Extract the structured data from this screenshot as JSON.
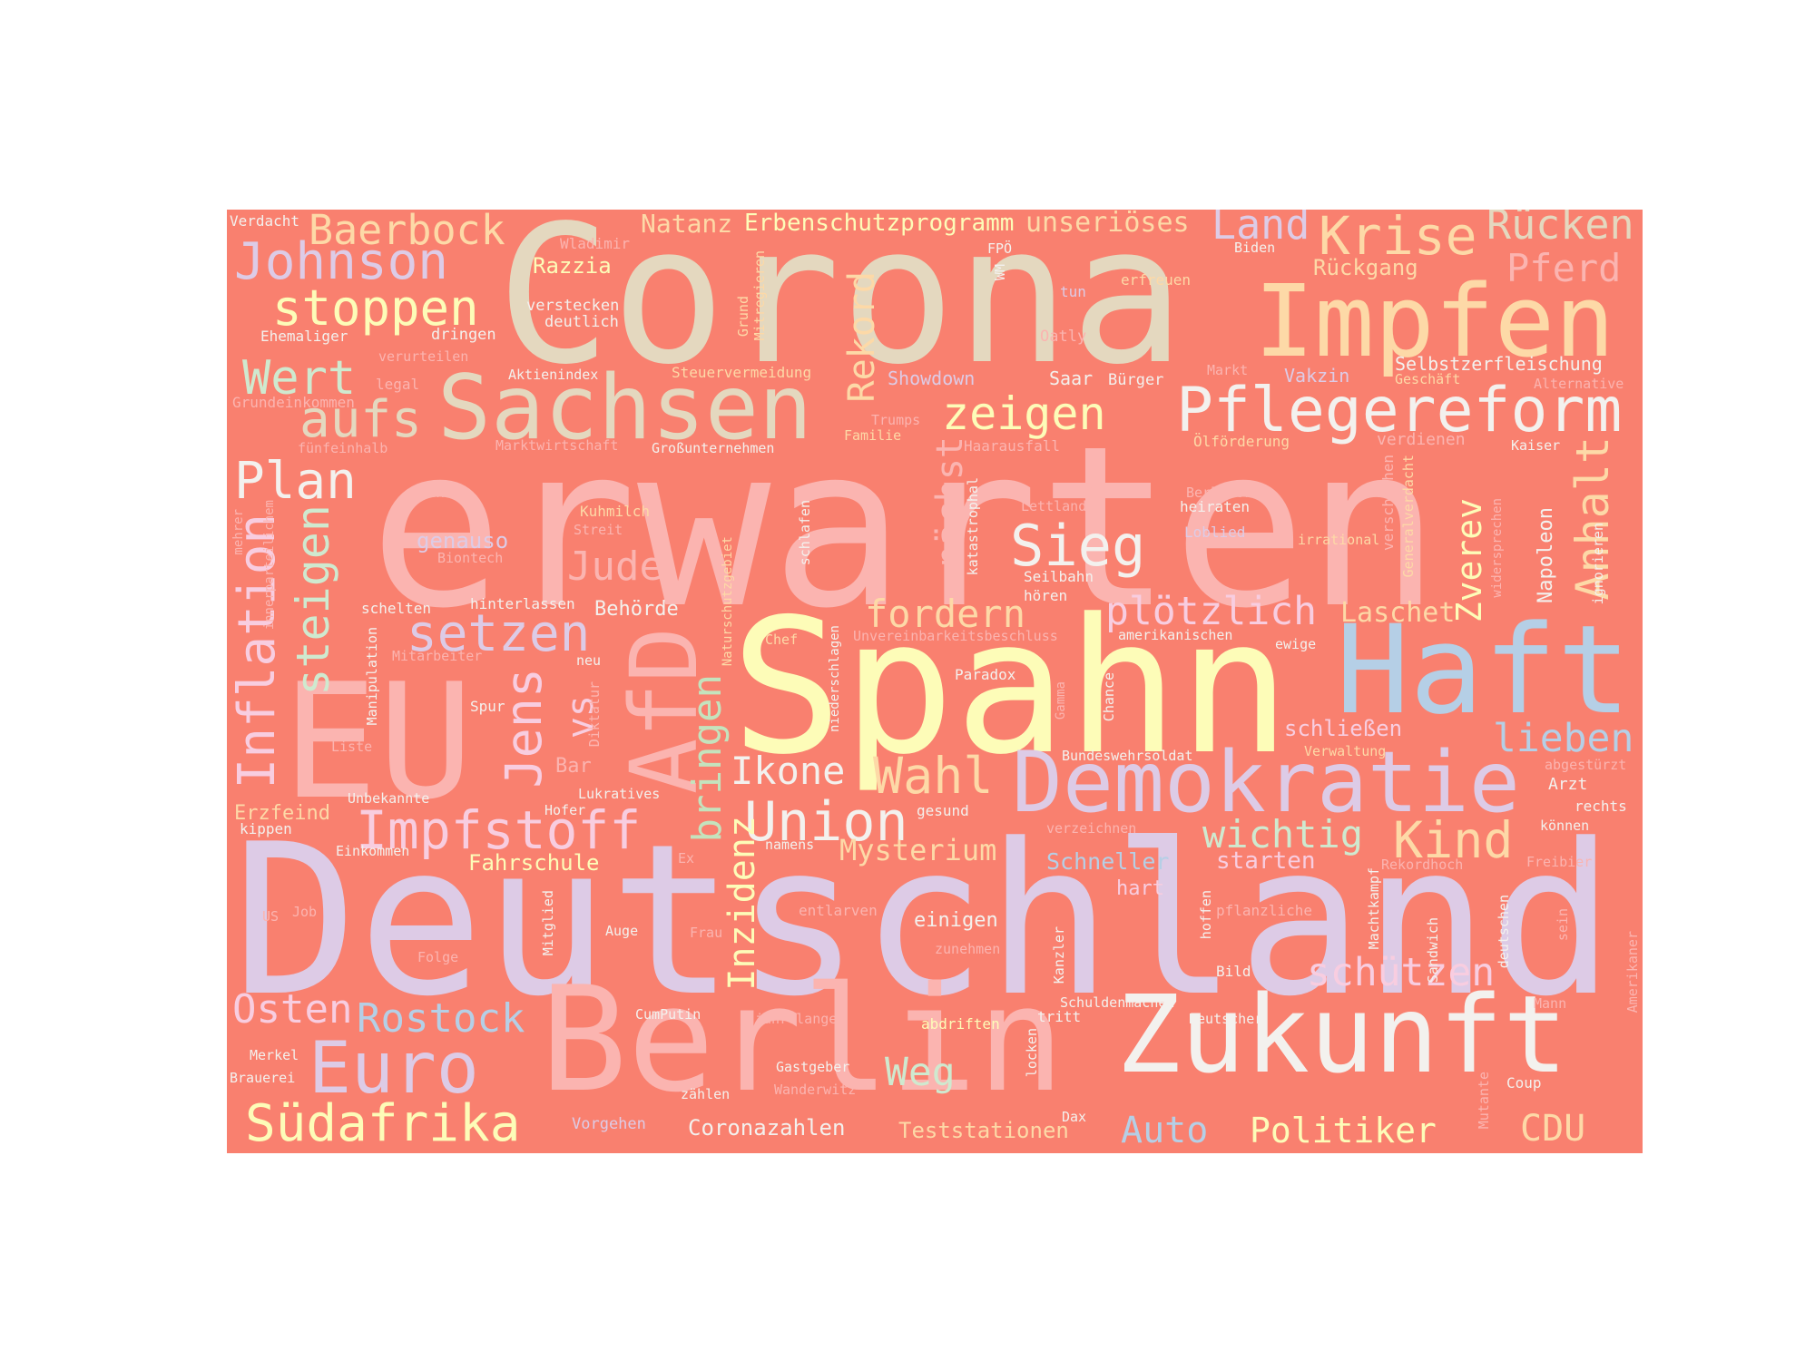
{
  "palette": {
    "background": "#f9806f",
    "page": "#ffffff",
    "lavender": "#ddcbe6",
    "pink": "#fbb4b0",
    "beige": "#e4d8bf",
    "yellow": "#fdfcb8",
    "peach": "#fdd9a7",
    "mint": "#cfe9cf",
    "blue": "#b5cfe6",
    "light_pink": "#f8cde0",
    "white": "#f3f1ee",
    "green": "#c4e3bd",
    "rose": "#f6c6d4"
  },
  "words": [
    {
      "text": "Corona",
      "color": "beige"
    },
    {
      "text": "erwarten",
      "color": "pink"
    },
    {
      "text": "Deutschland",
      "color": "lavender"
    },
    {
      "text": "Spahn",
      "color": "yellow"
    },
    {
      "text": "Berlin",
      "color": "pink"
    },
    {
      "text": "Impfen",
      "color": "peach"
    },
    {
      "text": "Sachsen",
      "color": "beige"
    },
    {
      "text": "EU",
      "color": "pink"
    },
    {
      "text": "Haft",
      "color": "blue"
    },
    {
      "text": "Zukunft",
      "color": "white"
    },
    {
      "text": "Demokratie",
      "color": "lavender"
    },
    {
      "text": "Pflegereform",
      "color": "white"
    },
    {
      "text": "AfD",
      "color": "pink"
    },
    {
      "text": "Johnson",
      "color": "lavender"
    },
    {
      "text": "Baerbock",
      "color": "peach"
    },
    {
      "text": "stoppen",
      "color": "yellow"
    },
    {
      "text": "Wert",
      "color": "mint"
    },
    {
      "text": "aufs",
      "color": "beige"
    },
    {
      "text": "Plan",
      "color": "white"
    },
    {
      "text": "Krise",
      "color": "peach"
    },
    {
      "text": "Rücken",
      "color": "beige"
    },
    {
      "text": "Land",
      "color": "lavender"
    },
    {
      "text": "Pferd",
      "color": "pink"
    },
    {
      "text": "zeigen",
      "color": "yellow"
    },
    {
      "text": "Sieg",
      "color": "white"
    },
    {
      "text": "setzen",
      "color": "lavender"
    },
    {
      "text": "fordern",
      "color": "peach"
    },
    {
      "text": "plötzlich",
      "color": "light_pink"
    },
    {
      "text": "Euro",
      "color": "lavender"
    },
    {
      "text": "Südafrika",
      "color": "yellow"
    },
    {
      "text": "Rostock",
      "color": "blue"
    },
    {
      "text": "Osten",
      "color": "light_pink"
    },
    {
      "text": "Impfstoff",
      "color": "light_pink"
    },
    {
      "text": "Union",
      "color": "white"
    },
    {
      "text": "Wahl",
      "color": "peach"
    },
    {
      "text": "Ikone",
      "color": "white"
    },
    {
      "text": "Kind",
      "color": "peach"
    },
    {
      "text": "wichtig",
      "color": "mint"
    },
    {
      "text": "lieben",
      "color": "blue"
    },
    {
      "text": "schützen",
      "color": "light_pink"
    },
    {
      "text": "Weg",
      "color": "mint"
    },
    {
      "text": "Auto",
      "color": "blue"
    },
    {
      "text": "Politiker",
      "color": "yellow"
    },
    {
      "text": "CDU",
      "color": "peach"
    },
    {
      "text": "Jude",
      "color": "pink"
    },
    {
      "text": "Mysterium",
      "color": "peach"
    },
    {
      "text": "Laschet",
      "color": "peach"
    },
    {
      "text": "Inflation",
      "color": "light_pink"
    },
    {
      "text": "steigen",
      "color": "mint"
    },
    {
      "text": "Jens",
      "color": "light_pink"
    },
    {
      "text": "vs",
      "color": "light_pink"
    },
    {
      "text": "bringen",
      "color": "green"
    },
    {
      "text": "Inzidenz",
      "color": "yellow"
    },
    {
      "text": "Rekord",
      "color": "peach"
    },
    {
      "text": "nächst",
      "color": "pink"
    },
    {
      "text": "Anhalt",
      "color": "peach"
    },
    {
      "text": "Zverev",
      "color": "yellow"
    },
    {
      "text": "Natanz",
      "color": "peach"
    },
    {
      "text": "Erbenschutzprogramm",
      "color": "yellow"
    },
    {
      "text": "unseriöses",
      "color": "peach"
    },
    {
      "text": "Razzia",
      "color": "yellow"
    },
    {
      "text": "Rückgang",
      "color": "peach"
    },
    {
      "text": "Selbstzerfleischung",
      "color": "white"
    },
    {
      "text": "Fahrschule",
      "color": "yellow"
    },
    {
      "text": "Schneller",
      "color": "blue"
    },
    {
      "text": "starten",
      "color": "light_pink"
    },
    {
      "text": "Behörde",
      "color": "white"
    },
    {
      "text": "genauso",
      "color": "lavender"
    },
    {
      "text": "Bar",
      "color": "pink"
    },
    {
      "text": "Showdown",
      "color": "lavender"
    },
    {
      "text": "Saar",
      "color": "white"
    },
    {
      "text": "Bürger",
      "color": "white"
    },
    {
      "text": "Coronazahlen",
      "color": "white"
    },
    {
      "text": "Teststationen",
      "color": "peach"
    },
    {
      "text": "schließen",
      "color": "light_pink"
    },
    {
      "text": "Erzfeind",
      "color": "peach"
    },
    {
      "text": "einigen",
      "color": "white"
    },
    {
      "text": "hart",
      "color": "light_pink"
    },
    {
      "text": "Napoleon",
      "color": "white"
    },
    {
      "text": "Vakzin",
      "color": "lavender"
    },
    {
      "text": "Verdacht",
      "color": "white"
    },
    {
      "text": "Wladimir",
      "color": "pink"
    },
    {
      "text": "FPÖ",
      "color": "white"
    },
    {
      "text": "Biden",
      "color": "white"
    },
    {
      "text": "erfreuen",
      "color": "peach"
    },
    {
      "text": "tun",
      "color": "lavender"
    },
    {
      "text": "verstecken",
      "color": "white"
    },
    {
      "text": "deutlich",
      "color": "white"
    },
    {
      "text": "Ehemaliger",
      "color": "white"
    },
    {
      "text": "dringen",
      "color": "white"
    },
    {
      "text": "verurteilen",
      "color": "pink"
    },
    {
      "text": "legal",
      "color": "pink"
    },
    {
      "text": "Grundeinkommen",
      "color": "pink"
    },
    {
      "text": "Aktienindex",
      "color": "white"
    },
    {
      "text": "Steuervermeidung",
      "color": "peach"
    },
    {
      "text": "Oatly",
      "color": "pink"
    },
    {
      "text": "Markt",
      "color": "pink"
    },
    {
      "text": "Geschäft",
      "color": "peach"
    },
    {
      "text": "Alternative",
      "color": "pink"
    },
    {
      "text": "Trumps",
      "color": "pink"
    },
    {
      "text": "Familie",
      "color": "peach"
    },
    {
      "text": "Haarausfall",
      "color": "pink"
    },
    {
      "text": "Ölförderung",
      "color": "peach"
    },
    {
      "text": "verdienen",
      "color": "pink"
    },
    {
      "text": "Kaiser",
      "color": "white"
    },
    {
      "text": "fünfeinhalb",
      "color": "pink"
    },
    {
      "text": "Marktwirtschaft",
      "color": "pink"
    },
    {
      "text": "Großunternehmen",
      "color": "white"
    },
    {
      "text": "Bank",
      "color": "pink"
    },
    {
      "text": "Attentat",
      "color": "pink"
    },
    {
      "text": "Berliner",
      "color": "pink"
    },
    {
      "text": "Lettland",
      "color": "pink"
    },
    {
      "text": "heiraten",
      "color": "white"
    },
    {
      "text": "Kuhmilch",
      "color": "peach"
    },
    {
      "text": "Streit",
      "color": "pink"
    },
    {
      "text": "Biontech",
      "color": "pink"
    },
    {
      "text": "Loblied",
      "color": "lavender"
    },
    {
      "text": "irrational",
      "color": "peach"
    },
    {
      "text": "Seilbahn",
      "color": "white"
    },
    {
      "text": "hören",
      "color": "white"
    },
    {
      "text": "schelten",
      "color": "white"
    },
    {
      "text": "hinterlassen",
      "color": "white"
    },
    {
      "text": "Unvereinbarkeitsbeschluss",
      "color": "pink"
    },
    {
      "text": "amerikanischen",
      "color": "white"
    },
    {
      "text": "ewige",
      "color": "white"
    },
    {
      "text": "Chef",
      "color": "peach"
    },
    {
      "text": "Mitarbeiter",
      "color": "pink"
    },
    {
      "text": "neu",
      "color": "white"
    },
    {
      "text": "Paradox",
      "color": "white"
    },
    {
      "text": "Spur",
      "color": "white"
    },
    {
      "text": "Liste",
      "color": "pink"
    },
    {
      "text": "Verwaltung",
      "color": "peach"
    },
    {
      "text": "Bundeswehrsoldat",
      "color": "white"
    },
    {
      "text": "abgestürzt",
      "color": "pink"
    },
    {
      "text": "Lukratives",
      "color": "white"
    },
    {
      "text": "Unbekannte",
      "color": "white"
    },
    {
      "text": "Hofer",
      "color": "white"
    },
    {
      "text": "gesund",
      "color": "white"
    },
    {
      "text": "Arzt",
      "color": "white"
    },
    {
      "text": "rechts",
      "color": "white"
    },
    {
      "text": "kippen",
      "color": "white"
    },
    {
      "text": "verzeichnen",
      "color": "pink"
    },
    {
      "text": "können",
      "color": "white"
    },
    {
      "text": "namens",
      "color": "white"
    },
    {
      "text": "Einkommen",
      "color": "white"
    },
    {
      "text": "Ex",
      "color": "pink"
    },
    {
      "text": "Rekordhoch",
      "color": "pink"
    },
    {
      "text": "Freibier",
      "color": "pink"
    },
    {
      "text": "US",
      "color": "pink"
    },
    {
      "text": "Job",
      "color": "pink"
    },
    {
      "text": "entlarven",
      "color": "pink"
    },
    {
      "text": "pflanzliche",
      "color": "pink"
    },
    {
      "text": "Auge",
      "color": "white"
    },
    {
      "text": "Frau",
      "color": "pink"
    },
    {
      "text": "zunehmen",
      "color": "pink"
    },
    {
      "text": "Bild",
      "color": "white"
    },
    {
      "text": "Folge",
      "color": "pink"
    },
    {
      "text": "Schuldenmachen",
      "color": "white"
    },
    {
      "text": "CumPutin",
      "color": "white"
    },
    {
      "text": "jahrelange",
      "color": "pink"
    },
    {
      "text": "tritt",
      "color": "white"
    },
    {
      "text": "Deutscher",
      "color": "white"
    },
    {
      "text": "Mann",
      "color": "pink"
    },
    {
      "text": "abdriften",
      "color": "yellow"
    },
    {
      "text": "Merkel",
      "color": "white"
    },
    {
      "text": "Gastgeber",
      "color": "white"
    },
    {
      "text": "Brauerei",
      "color": "white"
    },
    {
      "text": "zählen",
      "color": "white"
    },
    {
      "text": "Wanderwitz",
      "color": "pink"
    },
    {
      "text": "Coup",
      "color": "white"
    },
    {
      "text": "Vorgehen",
      "color": "lavender"
    },
    {
      "text": "Dax",
      "color": "white"
    },
    {
      "text": "Grund",
      "color": "peach"
    },
    {
      "text": "Mitregieren",
      "color": "peach"
    },
    {
      "text": "WM",
      "color": "white"
    },
    {
      "text": "innerparteilichem",
      "color": "pink"
    },
    {
      "text": "mehrer",
      "color": "pink"
    },
    {
      "text": "Manipulation",
      "color": "white"
    },
    {
      "text": "Diktatur",
      "color": "pink"
    },
    {
      "text": "Naturschutzgebiet",
      "color": "peach"
    },
    {
      "text": "schlafen",
      "color": "white"
    },
    {
      "text": "niederschlagen",
      "color": "white"
    },
    {
      "text": "katastrophal",
      "color": "white"
    },
    {
      "text": "Gamma",
      "color": "pink"
    },
    {
      "text": "Chance",
      "color": "white"
    },
    {
      "text": "verschmähen",
      "color": "pink"
    },
    {
      "text": "Generalverdacht",
      "color": "peach"
    },
    {
      "text": "widersprechen",
      "color": "pink"
    },
    {
      "text": "ignorieren",
      "color": "white"
    },
    {
      "text": "Mitglied",
      "color": "white"
    },
    {
      "text": "Kanzler",
      "color": "white"
    },
    {
      "text": "locken",
      "color": "white"
    },
    {
      "text": "hoffen",
      "color": "white"
    },
    {
      "text": "Machtkampf",
      "color": "white"
    },
    {
      "text": "Sandwich",
      "color": "white"
    },
    {
      "text": "deutschen",
      "color": "white"
    },
    {
      "text": "sein",
      "color": "pink"
    },
    {
      "text": "Amerikaner",
      "color": "pink"
    },
    {
      "text": "Mutante",
      "color": "pink"
    }
  ]
}
